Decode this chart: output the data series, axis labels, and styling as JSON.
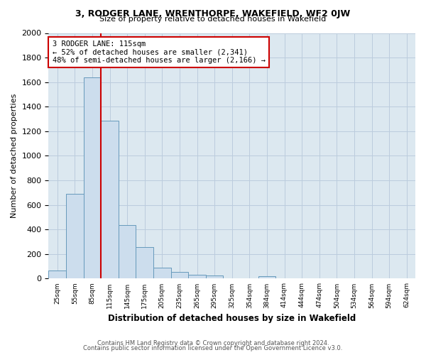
{
  "title1": "3, RODGER LANE, WRENTHORPE, WAKEFIELD, WF2 0JW",
  "title2": "Size of property relative to detached houses in Wakefield",
  "xlabel": "Distribution of detached houses by size in Wakefield",
  "ylabel": "Number of detached properties",
  "footer1": "Contains HM Land Registry data © Crown copyright and database right 2024.",
  "footer2": "Contains public sector information licensed under the Open Government Licence v3.0.",
  "categories": [
    "25sqm",
    "55sqm",
    "85sqm",
    "115sqm",
    "145sqm",
    "175sqm",
    "205sqm",
    "235sqm",
    "265sqm",
    "295sqm",
    "325sqm",
    "354sqm",
    "384sqm",
    "414sqm",
    "444sqm",
    "474sqm",
    "504sqm",
    "534sqm",
    "564sqm",
    "594sqm",
    "624sqm"
  ],
  "values": [
    65,
    690,
    1640,
    1285,
    435,
    255,
    90,
    55,
    30,
    28,
    0,
    0,
    20,
    0,
    0,
    0,
    0,
    0,
    0,
    0,
    0
  ],
  "bar_color": "#ccdded",
  "bar_edge_color": "#6699bb",
  "marker_line_color": "#cc0000",
  "annotation_text": "3 RODGER LANE: 115sqm\n← 52% of detached houses are smaller (2,341)\n48% of semi-detached houses are larger (2,166) →",
  "annotation_box_color": "#ffffff",
  "annotation_box_edge_color": "#cc0000",
  "ylim": [
    0,
    2000
  ],
  "yticks": [
    0,
    200,
    400,
    600,
    800,
    1000,
    1200,
    1400,
    1600,
    1800,
    2000
  ],
  "background_color": "#ffffff",
  "plot_bg_color": "#dce8f0",
  "grid_color": "#bbccdd"
}
